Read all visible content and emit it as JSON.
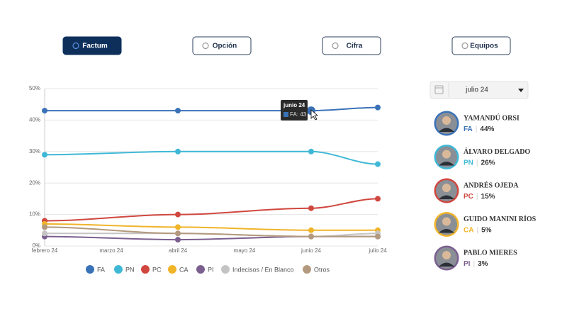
{
  "buttons": [
    {
      "label": "Factum",
      "selected": true
    },
    {
      "label": "Opción",
      "selected": false
    },
    {
      "label": "Cifra",
      "selected": false
    },
    {
      "label": "Equipos",
      "selected": false
    }
  ],
  "dropdown": {
    "value": "julio 24"
  },
  "candidates": [
    {
      "name": "YAMANDÚ ORSI",
      "party": "FA",
      "share": "44%"
    },
    {
      "name": "ÁLVARO DELGADO",
      "party": "PN",
      "share": "26%"
    },
    {
      "name": "ANDRÉS OJEDA",
      "party": "PC",
      "share": "15%"
    },
    {
      "name": "GUIDO MANINI RÍOS",
      "party": "CA",
      "share": "5%"
    },
    {
      "name": "PABLO MIERES",
      "party": "PI",
      "share": "3%"
    }
  ],
  "tooltip": {
    "date": "junio 24",
    "text": "FA: 43"
  },
  "chart_data": {
    "type": "line",
    "x": [
      "febrero 24",
      "abril 24",
      "junio 24",
      "julio 24"
    ],
    "xticks": [
      "febrero 24",
      "marzo 24",
      "abril 24",
      "mayo 24",
      "junio 24",
      "julio 24"
    ],
    "ylim": [
      0,
      50
    ],
    "yticks": [
      {
        "value": 0,
        "label": "0%"
      },
      {
        "value": 10,
        "label": "10%"
      },
      {
        "value": 20,
        "label": "20%"
      },
      {
        "value": 30,
        "label": "30%"
      },
      {
        "value": 40,
        "label": "40%"
      },
      {
        "value": 50,
        "label": "50%"
      }
    ],
    "grid": true,
    "legend": "bottom",
    "series": [
      {
        "name": "FA",
        "color": "#3a72b8",
        "values": [
          43,
          43,
          43,
          44
        ]
      },
      {
        "name": "PN",
        "color": "#3fb8d6",
        "values": [
          29,
          30,
          30,
          26
        ]
      },
      {
        "name": "PC",
        "color": "#d0473f",
        "values": [
          8,
          10,
          12,
          15
        ]
      },
      {
        "name": "CA",
        "color": "#f0b429",
        "values": [
          7,
          6,
          5,
          5
        ]
      },
      {
        "name": "PI",
        "color": "#7b5f8f",
        "values": [
          3,
          2,
          3,
          3
        ]
      },
      {
        "name": "Indecisos / En Blanco",
        "color": "#c4c4c4",
        "values": [
          4,
          4,
          3,
          4
        ]
      },
      {
        "name": "Otros",
        "color": "#b39a7e",
        "values": [
          6,
          4,
          3,
          3
        ]
      }
    ]
  }
}
